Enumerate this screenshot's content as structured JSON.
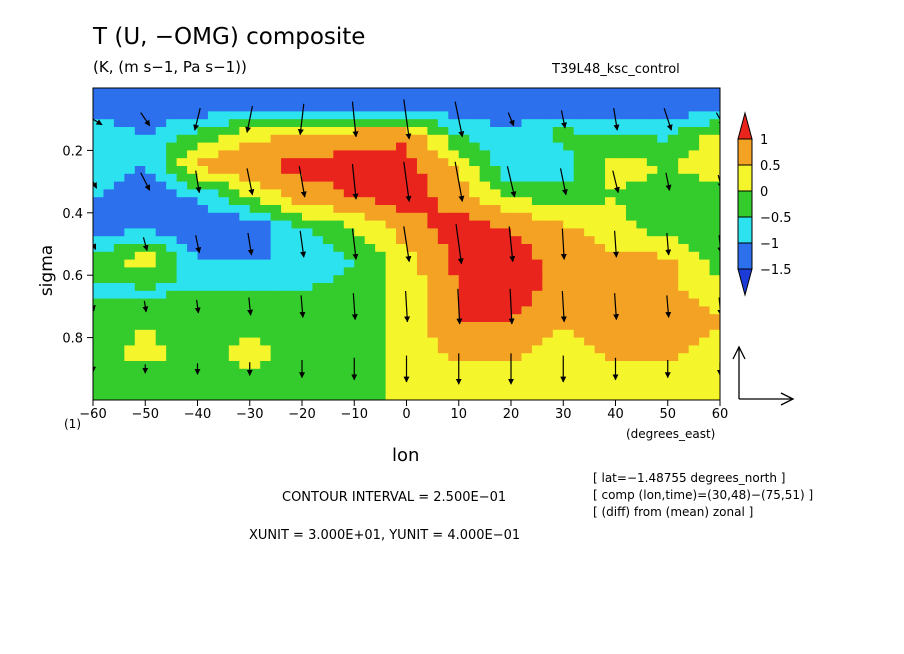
{
  "chart_data": {
    "type": "heatmap",
    "title": "T (U, −OMG) composite",
    "subtitle": "(K, (m s−1, Pa s−1))",
    "experiment": "T39L48_ksc_control",
    "xlabel": "lon",
    "x_units": "(degrees_east)",
    "ylabel": "sigma",
    "sigma_start_label": "(1)",
    "xlim": [
      -60,
      60
    ],
    "ylim": [
      1,
      0
    ],
    "x_ticks": [
      -60,
      -50,
      -40,
      -30,
      -20,
      -10,
      0,
      10,
      20,
      30,
      40,
      50,
      60
    ],
    "y_ticks": [
      0.2,
      0.4,
      0.6,
      0.8
    ],
    "colorbar": {
      "levels": [
        1,
        0.5,
        0,
        -0.5,
        -1,
        -1.5
      ],
      "labels": [
        "1",
        "0.5",
        "0",
        "−0.5",
        "−1",
        "−1.5"
      ],
      "colors": [
        "#e8241c",
        "#f4a224",
        "#f5f52c",
        "#34cc2c",
        "#2ce2ee",
        "#2c70ee",
        "#1c3cd8"
      ]
    },
    "field": {
      "lon": [
        -60,
        -50,
        -40,
        -30,
        -20,
        -10,
        0,
        10,
        20,
        30,
        40,
        50,
        60
      ],
      "sigma": [
        0.05,
        0.15,
        0.25,
        0.35,
        0.45,
        0.55,
        0.65,
        0.75,
        0.85,
        0.95
      ],
      "values": [
        [
          -1.5,
          -1.5,
          -1.5,
          -1.5,
          -1.5,
          -1.5,
          -1.5,
          -1.5,
          -1.5,
          -1.5,
          -1.5,
          -1.5,
          -1.5
        ],
        [
          -0.5,
          -1.0,
          -0.3,
          0.3,
          0.6,
          0.8,
          0.9,
          -0.5,
          -0.8,
          -0.3,
          -0.5,
          -0.6,
          0.3
        ],
        [
          -0.5,
          -1.0,
          0.6,
          1.0,
          1.1,
          1.2,
          1.2,
          0.4,
          -1.0,
          -0.8,
          0.2,
          0.0,
          0.3
        ],
        [
          -1.0,
          -1.5,
          -1.0,
          0.0,
          0.8,
          1.0,
          1.2,
          0.8,
          0.0,
          -0.3,
          0.0,
          -0.3,
          -0.3
        ],
        [
          -1.5,
          -1.0,
          -1.5,
          -1.5,
          -0.5,
          0.0,
          0.8,
          1.2,
          1.0,
          0.6,
          0.2,
          -0.3,
          -0.3
        ],
        [
          -0.3,
          0.3,
          -1.0,
          -1.0,
          -1.0,
          -0.5,
          0.3,
          1.2,
          1.2,
          0.8,
          0.6,
          0.6,
          -0.3
        ],
        [
          -0.6,
          -0.6,
          -0.5,
          -0.5,
          -0.5,
          -0.3,
          0.2,
          1.0,
          1.2,
          0.8,
          0.8,
          0.6,
          0.2
        ],
        [
          -0.3,
          0.0,
          -0.3,
          -0.3,
          -0.3,
          -0.3,
          0.2,
          1.0,
          1.0,
          0.6,
          0.8,
          1.0,
          0.6
        ],
        [
          -0.3,
          0.2,
          -0.3,
          0.3,
          -0.3,
          -0.3,
          0.2,
          0.6,
          0.6,
          0.2,
          0.6,
          0.6,
          0.2
        ],
        [
          -0.3,
          -0.3,
          -0.3,
          -0.3,
          -0.3,
          -0.3,
          0.2,
          0.3,
          0.2,
          0.2,
          0.2,
          0.2,
          0.2
        ]
      ]
    },
    "wind_vectors": {
      "lon": [
        -60,
        -50,
        -40,
        -30,
        -20,
        -10,
        0,
        10,
        20,
        30,
        40,
        50,
        60
      ],
      "sigma": [
        0.1,
        0.3,
        0.5,
        0.7,
        0.9
      ],
      "u": [
        [
          1,
          0.5,
          -0.3,
          -0.3,
          -0.2,
          0.2,
          0.3,
          0.4,
          0.3,
          0.2,
          0.2,
          0.4,
          0.4
        ],
        [
          0.4,
          0.5,
          0.2,
          0.3,
          0.3,
          0.2,
          0.3,
          0.4,
          0.4,
          0.3,
          0.3,
          0.2,
          0.2
        ],
        [
          0.3,
          0.2,
          0.2,
          0.2,
          0.2,
          0.2,
          0.3,
          0.3,
          0.2,
          0.1,
          0.1,
          0.1,
          0.1
        ],
        [
          0.1,
          0.1,
          0.1,
          0.1,
          0.1,
          0.1,
          0.1,
          0.1,
          0.1,
          0.1,
          0.1,
          0.1,
          0.1
        ],
        [
          0.0,
          0.0,
          0.0,
          0.0,
          0.0,
          0.0,
          0.0,
          0.0,
          0.0,
          0.0,
          0.0,
          0.0,
          0.0
        ]
      ],
      "w": [
        [
          -0.5,
          -0.6,
          -1.0,
          -1.2,
          -1.4,
          -1.6,
          -1.8,
          -1.6,
          -0.6,
          -0.8,
          -1.0,
          -1.0,
          -0.6
        ],
        [
          -0.6,
          -0.8,
          -1.0,
          -1.2,
          -1.4,
          -1.6,
          -1.8,
          -1.8,
          -1.4,
          -1.2,
          -1.0,
          -0.8,
          -0.6
        ],
        [
          -0.5,
          -0.6,
          -0.8,
          -1.0,
          -1.2,
          -1.4,
          -1.6,
          -1.8,
          -1.6,
          -1.4,
          -1.2,
          -1.0,
          -0.8
        ],
        [
          -0.4,
          -0.5,
          -0.6,
          -0.8,
          -1.0,
          -1.2,
          -1.4,
          -1.6,
          -1.6,
          -1.4,
          -1.2,
          -1.0,
          -0.8
        ],
        [
          -0.3,
          -0.4,
          -0.5,
          -0.6,
          -0.8,
          -1.0,
          -1.2,
          -1.4,
          -1.4,
          -1.2,
          -1.0,
          -0.8,
          -0.6
        ]
      ]
    }
  },
  "annotations": {
    "contour_interval": "CONTOUR INTERVAL = 2.500E−01",
    "vector_units": "XUNIT = 3.000E+01, YUNIT = 4.000E−01",
    "info_lines": [
      "[ lat=−1.48755 degrees_north ]",
      "[ comp (lon,time)=(30,48)−(75,51) ]",
      "[ (diff) from (mean) zonal ]"
    ]
  }
}
